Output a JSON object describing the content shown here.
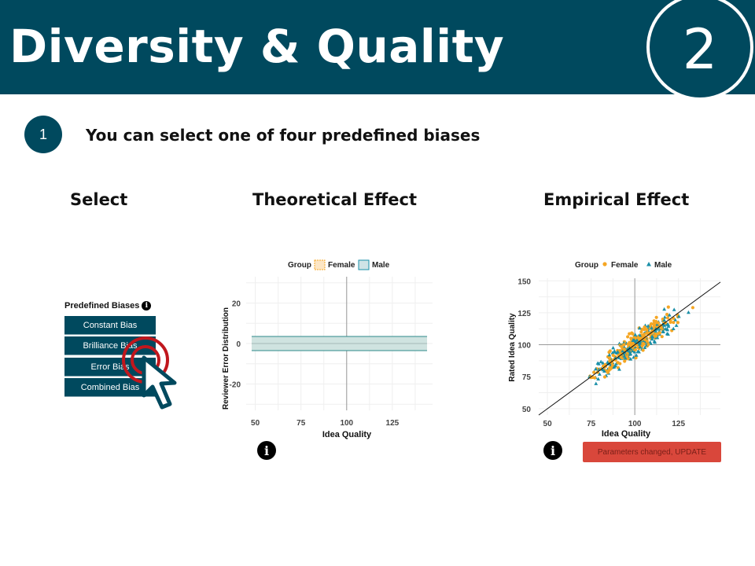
{
  "header": {
    "title": "Diversity & Quality",
    "slide_number": "2"
  },
  "step": {
    "number": "1",
    "text": "You can select one of four predefined biases"
  },
  "columns": {
    "select": "Select",
    "theoretical": "Theoretical Effect",
    "empirical": "Empirical Effect"
  },
  "bias_panel": {
    "title": "Predefined Biases",
    "info_icon": "i",
    "buttons": [
      "Constant Bias",
      "Brilliance Bias",
      "Error Bias",
      "Combined Bias"
    ]
  },
  "theoretical_chart": {
    "legend_title": "Group",
    "legend_items": [
      "Female",
      "Male"
    ],
    "ylabel": "Reviewer Error Distribution",
    "xlabel": "Idea Quality",
    "x_ticks": [
      "50",
      "75",
      "100",
      "125"
    ],
    "y_ticks": [
      "20",
      "0",
      "-20"
    ],
    "info_icon": "i"
  },
  "empirical_chart": {
    "legend_title": "Group",
    "legend_items": [
      "Female",
      "Male"
    ],
    "ylabel": "Rated Idea Quality",
    "xlabel": "Idea Quality",
    "x_ticks": [
      "50",
      "75",
      "100",
      "125"
    ],
    "y_ticks": [
      "150",
      "125",
      "100",
      "75",
      "50"
    ],
    "info_icon": "i",
    "update_label": "Parameters changed, UPDATE"
  },
  "chart_data": [
    {
      "type": "area",
      "xlabel": "Idea Quality",
      "ylabel": "Reviewer Error Distribution",
      "xlim": [
        45,
        147
      ],
      "ylim": [
        -33,
        33
      ],
      "x_ticks": [
        50,
        75,
        100,
        125
      ],
      "y_ticks": [
        -20,
        0,
        20
      ],
      "legend": {
        "title": "Group",
        "position": "top",
        "entries": [
          "Female",
          "Male"
        ]
      },
      "series": [
        {
          "name": "Male",
          "x": [
            48,
            144
          ],
          "lower": [
            -3.5,
            -3.5
          ],
          "upper": [
            3.5,
            3.5
          ],
          "center": [
            0,
            0
          ]
        }
      ],
      "grid": true
    },
    {
      "type": "scatter",
      "xlabel": "Idea Quality",
      "ylabel": "Rated Idea Quality",
      "xlim": [
        45,
        149
      ],
      "ylim": [
        45,
        152
      ],
      "x_ticks": [
        50,
        75,
        100,
        125
      ],
      "y_ticks": [
        50,
        75,
        100,
        125,
        150
      ],
      "legend": {
        "title": "Group",
        "position": "top",
        "entries": [
          "Female",
          "Male"
        ]
      },
      "reference_line": {
        "x": [
          45,
          149
        ],
        "y": [
          45,
          149
        ]
      },
      "series": [
        {
          "name": "Female",
          "color": "#f5a623",
          "marker": "circle",
          "x_range": [
            55,
            143
          ],
          "n": 230,
          "scatter_sd": 6
        },
        {
          "name": "Male",
          "color": "#1a8fa8",
          "marker": "triangle",
          "x_range": [
            48,
            140
          ],
          "n": 230,
          "scatter_sd": 6
        }
      ],
      "grid": true
    }
  ],
  "colors": {
    "brand": "#00495e",
    "female": "#f5a623",
    "male": "#1a8fa8",
    "update": "#d9473b",
    "cursor_ring": "#c0171d"
  }
}
